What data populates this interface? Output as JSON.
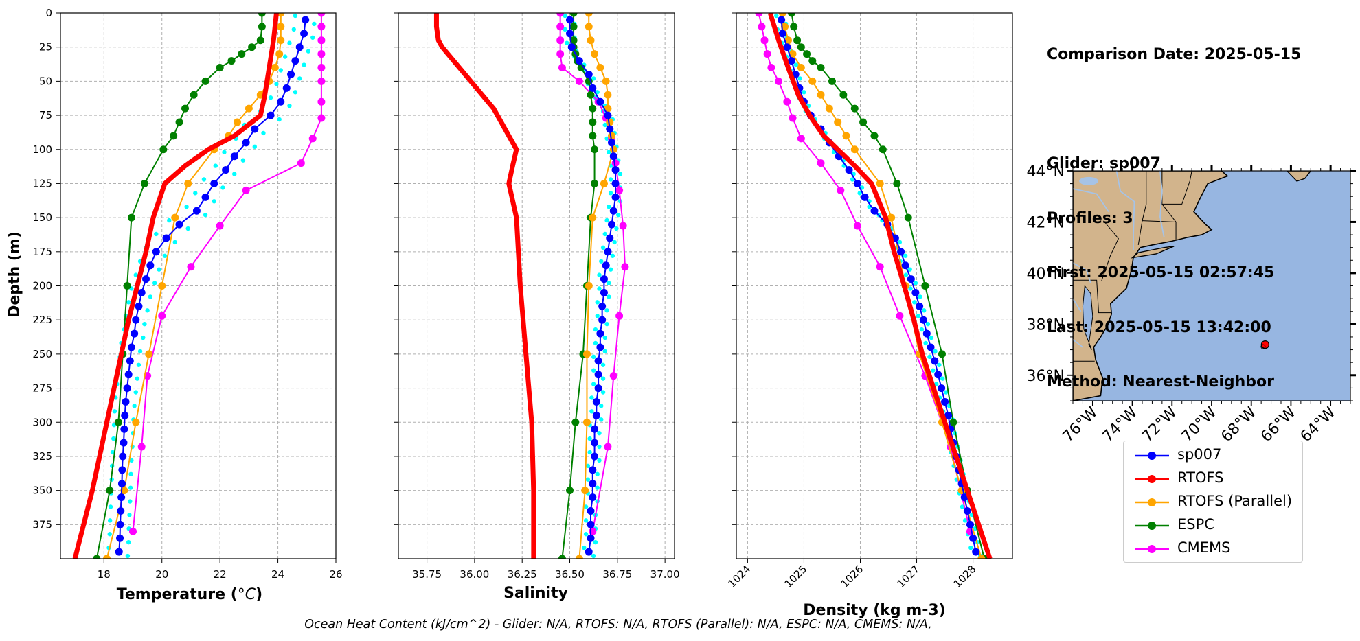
{
  "info": {
    "date_line": "Comparison Date: 2025-05-15",
    "glider_line": "Glider: sp007",
    "profiles_line": "Profiles: 3",
    "first_line": "First: 2025-05-15 02:57:45",
    "last_line": "Last: 2025-05-15 13:42:00",
    "method_line": "Method: Nearest-Neighbor"
  },
  "caption": "Ocean Heat Content (kJ/cm^2) - Glider: N/A,  RTOFS: N/A,  RTOFS (Parallel): N/A,  ESPC: N/A,  CMEMS: N/A,",
  "legend": [
    {
      "name": "sp007",
      "color": "#0000ff"
    },
    {
      "name": "RTOFS",
      "color": "#ff0000"
    },
    {
      "name": "RTOFS (Parallel)",
      "color": "#ffa500"
    },
    {
      "name": "ESPC",
      "color": "#008000"
    },
    {
      "name": "CMEMS",
      "color": "#ff00ff"
    }
  ],
  "chart_data": [
    {
      "type": "line",
      "xlabel": "Temperature (°C)",
      "ylabel": "Depth (m)",
      "xlim": [
        16.5,
        26
      ],
      "ylim": [
        400,
        0
      ],
      "xticks": [
        "18",
        "20",
        "22",
        "24",
        "26"
      ],
      "yticks": [
        "0",
        "25",
        "50",
        "75",
        "100",
        "125",
        "150",
        "175",
        "200",
        "225",
        "250",
        "275",
        "300",
        "325",
        "350",
        "375"
      ],
      "grid": true,
      "series": [
        {
          "name": "sp007",
          "color": "#0000ff",
          "depth": [
            5,
            15,
            25,
            35,
            45,
            55,
            65,
            75,
            85,
            95,
            105,
            115,
            125,
            135,
            145,
            155,
            165,
            175,
            185,
            195,
            205,
            215,
            225,
            235,
            245,
            255,
            265,
            275,
            285,
            295,
            305,
            315,
            325,
            335,
            345,
            355,
            365,
            375,
            385,
            395
          ],
          "values": [
            24.95,
            24.9,
            24.75,
            24.6,
            24.45,
            24.3,
            24.1,
            23.75,
            23.2,
            22.9,
            22.5,
            22.2,
            21.8,
            21.5,
            21.2,
            20.6,
            20.15,
            19.8,
            19.6,
            19.45,
            19.3,
            19.2,
            19.1,
            19.05,
            18.95,
            18.9,
            18.85,
            18.8,
            18.75,
            18.72,
            18.7,
            18.68,
            18.65,
            18.63,
            18.62,
            18.6,
            18.58,
            18.56,
            18.55,
            18.52
          ]
        },
        {
          "name": "RTOFS",
          "color": "#ff0000",
          "depth": [
            0,
            20,
            40,
            60,
            75,
            90,
            100,
            112,
            125,
            150,
            175,
            200,
            225,
            250,
            275,
            300,
            325,
            350,
            375,
            400
          ],
          "values": [
            23.95,
            23.85,
            23.7,
            23.55,
            23.4,
            22.5,
            21.6,
            20.8,
            20.1,
            19.7,
            19.45,
            19.15,
            18.85,
            18.6,
            18.35,
            18.1,
            17.85,
            17.6,
            17.3,
            17.0
          ]
        },
        {
          "name": "RTOFS (Parallel)",
          "color": "#ffa500",
          "depth": [
            0,
            10,
            20,
            30,
            40,
            50,
            60,
            70,
            80,
            90,
            100,
            125,
            150,
            200,
            250,
            300,
            350,
            400
          ],
          "values": [
            24.1,
            24.1,
            24.1,
            24.05,
            23.9,
            23.7,
            23.4,
            23.0,
            22.6,
            22.3,
            21.8,
            20.9,
            20.45,
            20.0,
            19.55,
            19.1,
            18.7,
            18.1
          ]
        },
        {
          "name": "ESPC",
          "color": "#008000",
          "depth": [
            0,
            10,
            20,
            25,
            30,
            35,
            40,
            50,
            60,
            70,
            80,
            90,
            100,
            125,
            150,
            200,
            250,
            300,
            350,
            400
          ],
          "values": [
            23.45,
            23.45,
            23.4,
            23.1,
            22.75,
            22.4,
            22.0,
            21.5,
            21.1,
            20.8,
            20.6,
            20.4,
            20.05,
            19.4,
            18.95,
            18.8,
            18.65,
            18.5,
            18.2,
            17.75
          ]
        },
        {
          "name": "CMEMS",
          "color": "#ff00ff",
          "depth": [
            0,
            10,
            20,
            30,
            40,
            50,
            65,
            77,
            92,
            110,
            130,
            156,
            186,
            222,
            266,
            318,
            380
          ],
          "values": [
            25.5,
            25.5,
            25.5,
            25.5,
            25.5,
            25.5,
            25.5,
            25.5,
            25.2,
            24.8,
            22.9,
            22.0,
            21.0,
            20.0,
            19.5,
            19.3,
            19.0
          ]
        }
      ]
    },
    {
      "type": "line",
      "xlabel": "Salinity",
      "ylabel": "",
      "xlim": [
        35.6,
        37.05
      ],
      "ylim": [
        400,
        0
      ],
      "xticks": [
        "35.75",
        "36.00",
        "36.25",
        "36.50",
        "36.75",
        "37.00"
      ],
      "grid": true,
      "series": [
        {
          "name": "sp007",
          "color": "#0000ff",
          "depth": [
            5,
            15,
            25,
            35,
            45,
            55,
            65,
            75,
            85,
            95,
            105,
            115,
            125,
            135,
            145,
            155,
            165,
            175,
            185,
            195,
            205,
            215,
            225,
            235,
            245,
            255,
            265,
            275,
            285,
            295,
            305,
            315,
            325,
            335,
            345,
            355,
            365,
            375,
            385,
            395
          ],
          "values": [
            36.5,
            36.5,
            36.51,
            36.55,
            36.6,
            36.62,
            36.66,
            36.7,
            36.71,
            36.72,
            36.73,
            36.74,
            36.74,
            36.74,
            36.73,
            36.72,
            36.71,
            36.7,
            36.69,
            36.68,
            36.68,
            36.67,
            36.67,
            36.66,
            36.66,
            36.65,
            36.65,
            36.65,
            36.64,
            36.64,
            36.63,
            36.63,
            36.63,
            36.62,
            36.62,
            36.62,
            36.61,
            36.61,
            36.61,
            36.6
          ]
        },
        {
          "name": "RTOFS",
          "color": "#ff0000",
          "depth": [
            0,
            10,
            20,
            25,
            30,
            40,
            50,
            60,
            70,
            80,
            90,
            100,
            112,
            125,
            150,
            200,
            250,
            300,
            350,
            400
          ],
          "values": [
            35.8,
            35.8,
            35.81,
            35.83,
            35.86,
            35.92,
            35.98,
            36.04,
            36.1,
            36.14,
            36.18,
            36.22,
            36.2,
            36.18,
            36.22,
            36.24,
            36.27,
            36.3,
            36.31,
            36.31
          ]
        },
        {
          "name": "RTOFS (Parallel)",
          "color": "#ffa500",
          "depth": [
            0,
            10,
            20,
            30,
            40,
            50,
            60,
            70,
            80,
            90,
            100,
            125,
            150,
            200,
            250,
            300,
            350,
            400
          ],
          "values": [
            36.6,
            36.6,
            36.61,
            36.63,
            36.66,
            36.69,
            36.7,
            36.7,
            36.71,
            36.72,
            36.73,
            36.68,
            36.62,
            36.6,
            36.59,
            36.59,
            36.58,
            36.55
          ]
        },
        {
          "name": "ESPC",
          "color": "#008000",
          "depth": [
            0,
            10,
            20,
            25,
            30,
            35,
            40,
            50,
            60,
            70,
            80,
            90,
            100,
            125,
            150,
            200,
            250,
            300,
            350,
            400
          ],
          "values": [
            36.52,
            36.52,
            36.52,
            36.52,
            36.53,
            36.54,
            36.56,
            36.6,
            36.61,
            36.62,
            36.62,
            36.62,
            36.63,
            36.63,
            36.61,
            36.59,
            36.57,
            36.53,
            36.5,
            36.46
          ]
        },
        {
          "name": "CMEMS",
          "color": "#ff00ff",
          "depth": [
            0,
            10,
            20,
            30,
            40,
            50,
            65,
            77,
            92,
            110,
            130,
            156,
            186,
            222,
            266,
            318,
            380
          ],
          "values": [
            36.45,
            36.45,
            36.45,
            36.45,
            36.46,
            36.55,
            36.65,
            36.69,
            36.72,
            36.74,
            36.76,
            36.78,
            36.79,
            36.76,
            36.73,
            36.7,
            36.62
          ]
        }
      ]
    },
    {
      "type": "line",
      "xlabel": "Density (kg m-3)",
      "ylabel": "",
      "xlim": [
        1023.8,
        1028.7
      ],
      "ylim": [
        400,
        0
      ],
      "xticks": [
        "1024",
        "1025",
        "1026",
        "1027",
        "1028"
      ],
      "grid": true,
      "series": [
        {
          "name": "sp007",
          "color": "#0000ff",
          "depth": [
            5,
            15,
            25,
            35,
            45,
            55,
            65,
            75,
            85,
            95,
            105,
            115,
            125,
            135,
            145,
            155,
            165,
            175,
            185,
            195,
            205,
            215,
            225,
            235,
            245,
            255,
            265,
            275,
            285,
            295,
            305,
            315,
            325,
            335,
            345,
            355,
            365,
            375,
            385,
            395
          ],
          "values": [
            1024.6,
            1024.62,
            1024.7,
            1024.78,
            1024.85,
            1024.92,
            1025.0,
            1025.12,
            1025.3,
            1025.45,
            1025.62,
            1025.8,
            1025.95,
            1026.08,
            1026.25,
            1026.48,
            1026.62,
            1026.72,
            1026.8,
            1026.9,
            1026.98,
            1027.05,
            1027.12,
            1027.18,
            1027.25,
            1027.32,
            1027.38,
            1027.44,
            1027.5,
            1027.56,
            1027.6,
            1027.65,
            1027.7,
            1027.75,
            1027.8,
            1027.85,
            1027.9,
            1027.95,
            1028.0,
            1028.05
          ]
        },
        {
          "name": "RTOFS",
          "color": "#ff0000",
          "depth": [
            0,
            20,
            40,
            60,
            75,
            90,
            100,
            112,
            125,
            150,
            175,
            200,
            225,
            250,
            275,
            300,
            325,
            350,
            375,
            400
          ],
          "values": [
            1024.4,
            1024.55,
            1024.72,
            1024.9,
            1025.1,
            1025.35,
            1025.6,
            1025.9,
            1026.2,
            1026.45,
            1026.6,
            1026.78,
            1026.95,
            1027.1,
            1027.3,
            1027.5,
            1027.7,
            1027.9,
            1028.1,
            1028.3
          ]
        },
        {
          "name": "RTOFS (Parallel)",
          "color": "#ffa500",
          "depth": [
            0,
            10,
            20,
            30,
            40,
            50,
            60,
            70,
            80,
            90,
            100,
            125,
            150,
            200,
            250,
            300,
            350,
            400
          ],
          "values": [
            1024.62,
            1024.66,
            1024.72,
            1024.8,
            1024.95,
            1025.15,
            1025.3,
            1025.45,
            1025.6,
            1025.75,
            1025.9,
            1026.35,
            1026.55,
            1026.8,
            1027.05,
            1027.45,
            1027.8,
            1028.15
          ]
        },
        {
          "name": "ESPC",
          "color": "#008000",
          "depth": [
            0,
            10,
            20,
            25,
            30,
            35,
            40,
            50,
            60,
            70,
            80,
            90,
            100,
            125,
            150,
            200,
            250,
            300,
            350,
            400
          ],
          "values": [
            1024.78,
            1024.82,
            1024.88,
            1024.95,
            1025.05,
            1025.15,
            1025.3,
            1025.5,
            1025.7,
            1025.9,
            1026.05,
            1026.25,
            1026.4,
            1026.65,
            1026.85,
            1027.15,
            1027.45,
            1027.65,
            1027.9,
            1028.2
          ]
        },
        {
          "name": "CMEMS",
          "color": "#ff00ff",
          "depth": [
            0,
            10,
            20,
            30,
            40,
            50,
            65,
            77,
            92,
            110,
            130,
            156,
            186,
            222,
            266,
            318,
            380
          ],
          "values": [
            1024.2,
            1024.25,
            1024.3,
            1024.35,
            1024.42,
            1024.55,
            1024.7,
            1024.8,
            1024.95,
            1025.3,
            1025.65,
            1025.95,
            1026.35,
            1026.7,
            1027.15,
            1027.6,
            1027.95
          ]
        }
      ]
    }
  ],
  "map": {
    "lat_ticks": [
      "44°N",
      "42°N",
      "40°N",
      "38°N",
      "36°N"
    ],
    "lon_ticks": [
      "76°W",
      "74°W",
      "72°W",
      "70°W",
      "68°W",
      "66°W",
      "64°W"
    ],
    "land_color": "#d2b48c",
    "ocean_color": "#97b6e1",
    "marker_color": "#ff0000",
    "marker_lon": -67.3,
    "marker_lat": 37.2,
    "lon_range": [
      -77,
      -63
    ],
    "lat_range": [
      35,
      44
    ]
  }
}
